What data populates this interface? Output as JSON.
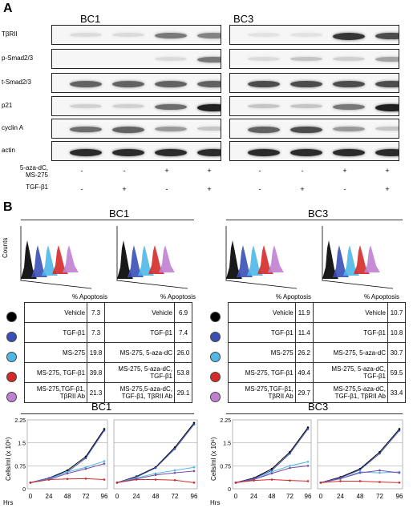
{
  "panelA": {
    "letter": "A",
    "groups": [
      "BC1",
      "BC3"
    ],
    "rows": [
      "TβRII",
      "p-Smad2/3",
      "t-Smad2/3",
      "p21",
      "cyclin A",
      "actin"
    ],
    "treatments": [
      {
        "label": "5-aza-dC,\nMS-275",
        "signs": [
          "-",
          "-",
          "+",
          "+"
        ]
      },
      {
        "label": "TGF-β1",
        "signs": [
          "-",
          "+",
          "-",
          "+"
        ]
      }
    ],
    "band_intensity": {
      "BC1": [
        [
          0.05,
          0.05,
          0.5,
          0.45
        ],
        [
          0,
          0,
          0.05,
          0.5
        ],
        [
          0.6,
          0.6,
          0.6,
          0.6
        ],
        [
          0.1,
          0.1,
          0.55,
          0.9
        ],
        [
          0.55,
          0.6,
          0.35,
          0.15
        ],
        [
          0.85,
          0.85,
          0.85,
          0.85
        ]
      ],
      "BC3": [
        [
          0.02,
          0.02,
          0.8,
          0.7
        ],
        [
          0.05,
          0.15,
          0.1,
          0.3
        ],
        [
          0.7,
          0.7,
          0.7,
          0.7
        ],
        [
          0.15,
          0.15,
          0.5,
          0.9
        ],
        [
          0.6,
          0.7,
          0.35,
          0.15
        ],
        [
          0.85,
          0.85,
          0.85,
          0.85
        ]
      ]
    }
  },
  "panelB": {
    "letter": "B",
    "groups": [
      "BC1",
      "BC3"
    ],
    "flow_axis_label": "Counts",
    "legend_colors": [
      "#000000",
      "#3a4fb4",
      "#4fb8e8",
      "#d42a2a",
      "#c07fd0"
    ],
    "tables": {
      "BC1": {
        "header": "% Apoptosis",
        "left": [
          [
            "Vehicle",
            "7.3"
          ],
          [
            "TGF-β1",
            "7.3"
          ],
          [
            "MS-275",
            "19.8"
          ],
          [
            "MS-275, TGF-β1",
            "39.8"
          ],
          [
            "MS-275,TGF-β1,\nTβRII Ab",
            "21.3"
          ]
        ],
        "right": [
          [
            "Vehicle",
            "6.9"
          ],
          [
            "TGF-β1",
            "7.4"
          ],
          [
            "MS-275, 5-aza-dC",
            "26.0"
          ],
          [
            "MS-275, 5-aza-dC,\nTGF-β1",
            "53.8"
          ],
          [
            "MS-275,5-aza-dC,\nTGF-β1, TβRII Ab",
            "29.1"
          ]
        ]
      },
      "BC3": {
        "header": "% Apoptosis",
        "left": [
          [
            "Vehicle",
            "11.9"
          ],
          [
            "TGF-β1",
            "11.4"
          ],
          [
            "MS-275",
            "26.2"
          ],
          [
            "MS-275, TGF-β1",
            "49.4"
          ],
          [
            "MS-275,TGF-β1,\nTβRII Ab",
            "29.7"
          ]
        ],
        "right": [
          [
            "Vehicle",
            "10.7"
          ],
          [
            "TGF-β1",
            "10.8"
          ],
          [
            "MS-275, 5-aza-dC",
            "30.7"
          ],
          [
            "MS-275, 5-aza-dC,\nTGF-β1",
            "59.5"
          ],
          [
            "MS-275,5-aza-dC,\nTGF-β1, TβRII Ab",
            "33.4"
          ]
        ]
      }
    }
  },
  "chart_data": [
    {
      "type": "line",
      "title": "BC1",
      "ylabel": "Cells/ml (x 10⁶)",
      "xlabel": "Hrs",
      "x": [
        0,
        24,
        48,
        72,
        96
      ],
      "ylim": [
        0,
        2.25
      ],
      "yticks": [
        "0",
        "0.75",
        "1.5",
        "2.25"
      ],
      "series": [
        {
          "color": "#000000",
          "values": [
            0.2,
            0.35,
            0.6,
            1.05,
            1.95
          ]
        },
        {
          "color": "#3a4fb4",
          "values": [
            0.2,
            0.35,
            0.55,
            1.0,
            1.9
          ]
        },
        {
          "color": "#4fb8e8",
          "values": [
            0.2,
            0.32,
            0.55,
            0.7,
            0.9
          ]
        },
        {
          "color": "#7a4fa0",
          "values": [
            0.2,
            0.3,
            0.5,
            0.65,
            0.82
          ]
        },
        {
          "color": "#d42a2a",
          "values": [
            0.2,
            0.3,
            0.32,
            0.33,
            0.3
          ]
        }
      ]
    },
    {
      "type": "line",
      "x": [
        0,
        24,
        48,
        72,
        96
      ],
      "ylim": [
        0,
        2.25
      ],
      "series": [
        {
          "color": "#000000",
          "values": [
            0.2,
            0.4,
            0.7,
            1.35,
            2.15
          ]
        },
        {
          "color": "#3a4fb4",
          "values": [
            0.2,
            0.38,
            0.68,
            1.3,
            2.1
          ]
        },
        {
          "color": "#4fb8e8",
          "values": [
            0.2,
            0.35,
            0.5,
            0.6,
            0.7
          ]
        },
        {
          "color": "#7a4fa0",
          "values": [
            0.2,
            0.32,
            0.45,
            0.52,
            0.58
          ]
        },
        {
          "color": "#d42a2a",
          "values": [
            0.2,
            0.3,
            0.3,
            0.28,
            0.2
          ]
        }
      ]
    },
    {
      "type": "line",
      "title": "BC3",
      "ylabel": "Cells/ml (x 10⁶)",
      "xlabel": "Hrs",
      "x": [
        0,
        24,
        48,
        72,
        96
      ],
      "ylim": [
        0,
        2.25
      ],
      "yticks": [
        "0",
        "0.75",
        "1.5",
        "2.25"
      ],
      "series": [
        {
          "color": "#000000",
          "values": [
            0.2,
            0.35,
            0.65,
            1.2,
            2.0
          ]
        },
        {
          "color": "#3a4fb4",
          "values": [
            0.2,
            0.33,
            0.6,
            1.15,
            1.95
          ]
        },
        {
          "color": "#4fb8e8",
          "values": [
            0.2,
            0.3,
            0.55,
            0.75,
            0.88
          ]
        },
        {
          "color": "#7a4fa0",
          "values": [
            0.2,
            0.3,
            0.5,
            0.68,
            0.75
          ]
        },
        {
          "color": "#d42a2a",
          "values": [
            0.2,
            0.27,
            0.3,
            0.27,
            0.25
          ]
        }
      ]
    },
    {
      "type": "line",
      "x": [
        0,
        24,
        48,
        72,
        96
      ],
      "ylim": [
        0,
        2.25
      ],
      "series": [
        {
          "color": "#000000",
          "values": [
            0.2,
            0.38,
            0.65,
            1.2,
            1.95
          ]
        },
        {
          "color": "#3a4fb4",
          "values": [
            0.2,
            0.36,
            0.62,
            1.15,
            1.9
          ]
        },
        {
          "color": "#4fb8e8",
          "values": [
            0.2,
            0.33,
            0.55,
            0.52,
            0.55
          ]
        },
        {
          "color": "#7a4fa0",
          "values": [
            0.2,
            0.33,
            0.52,
            0.6,
            0.52
          ]
        },
        {
          "color": "#d42a2a",
          "values": [
            0.2,
            0.25,
            0.25,
            0.22,
            0.2
          ]
        }
      ]
    }
  ]
}
